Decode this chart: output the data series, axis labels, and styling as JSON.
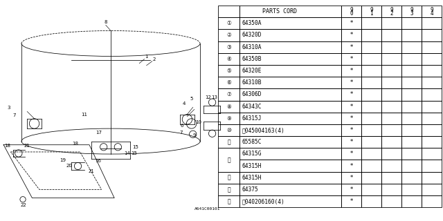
{
  "ref_code": "A641C00101",
  "rows": [
    {
      "num": "1",
      "code": "64350A",
      "mark": "*"
    },
    {
      "num": "2",
      "code": "64320D",
      "mark": "*"
    },
    {
      "num": "3",
      "code": "64310A",
      "mark": "*"
    },
    {
      "num": "4",
      "code": "64350B",
      "mark": "*"
    },
    {
      "num": "5",
      "code": "64320E",
      "mark": "*"
    },
    {
      "num": "6",
      "code": "64310B",
      "mark": "*"
    },
    {
      "num": "7",
      "code": "64306D",
      "mark": "*"
    },
    {
      "num": "8",
      "code": "64343C",
      "mark": "*"
    },
    {
      "num": "9",
      "code": "64315J",
      "mark": "*"
    },
    {
      "num": "10",
      "code": "Ⓞ045004163(4)",
      "mark": "*"
    },
    {
      "num": "11",
      "code": "65585C",
      "mark": "*"
    },
    {
      "num": "12",
      "code": "64315G",
      "mark": "*",
      "sub": true
    },
    {
      "num": "12",
      "code": "64315H",
      "mark": "*",
      "sub": true
    },
    {
      "num": "13",
      "code": "64315H",
      "mark": "*"
    },
    {
      "num": "14",
      "code": "64375",
      "mark": "*"
    },
    {
      "num": "15",
      "code": "Ⓞ040206160(4)",
      "mark": "*"
    }
  ],
  "bg_color": "#ffffff",
  "line_color": "#000000"
}
